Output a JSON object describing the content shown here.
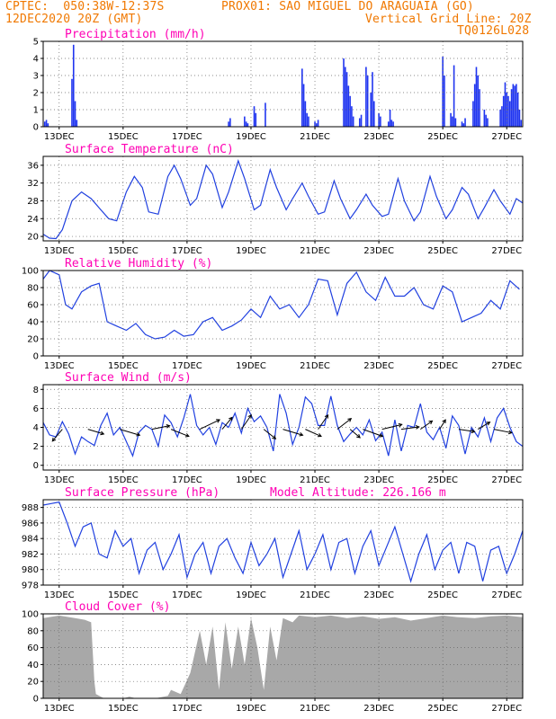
{
  "header": {
    "line1_left": "CPTEC:  050:38W-12:37S",
    "line1_right": "PROX01: SAO MIGUEL DO ARAGUAIA (GO)",
    "line2_left": "12DEC2020 20Z (GMT)",
    "line2_right": "Vertical Grid Line: 20Z",
    "line3_right": "TQ0126L028"
  },
  "colors": {
    "header": "#f07800",
    "title": "#ff00b4",
    "line": "#2040e0",
    "bar": "#2035f0",
    "cloud": "#a8a8a8"
  },
  "x_axis": {
    "start": "12DEC2020 20Z",
    "end": "27DEC2020 20Z",
    "tick_labels": [
      "13DEC",
      "15DEC",
      "17DEC",
      "19DEC",
      "21DEC",
      "23DEC",
      "25DEC",
      "27DEC"
    ]
  },
  "chart_data": [
    {
      "id": "precip",
      "type": "bar",
      "title": "Precipitation (mm/h)",
      "ylim": [
        0,
        5
      ],
      "yticks": [
        0,
        1,
        2,
        3,
        4,
        5
      ],
      "x": [
        0.05,
        0.1,
        0.15,
        0.9,
        0.95,
        1.0,
        1.05,
        5.8,
        5.85,
        6.3,
        6.35,
        6.4,
        6.6,
        6.65,
        6.95,
        8.1,
        8.15,
        8.2,
        8.25,
        8.3,
        8.5,
        8.55,
        8.6,
        9.4,
        9.45,
        9.5,
        9.55,
        9.6,
        9.65,
        9.7,
        9.9,
        9.95,
        10.1,
        10.15,
        10.25,
        10.3,
        10.35,
        10.5,
        10.55,
        10.8,
        10.85,
        10.9,
        10.95,
        12.5,
        12.55,
        12.75,
        12.8,
        12.85,
        12.9,
        13.1,
        13.15,
        13.2,
        13.45,
        13.5,
        13.55,
        13.6,
        13.65,
        13.8,
        13.85,
        13.9,
        14.3,
        14.35,
        14.4,
        14.45,
        14.5,
        14.55,
        14.6,
        14.65,
        14.7,
        14.75,
        14.8,
        14.85,
        14.9,
        14.95
      ],
      "values": [
        0.3,
        0.4,
        0.2,
        2.8,
        4.8,
        1.5,
        0.4,
        0.3,
        0.5,
        0.6,
        0.3,
        0.2,
        1.2,
        0.8,
        1.4,
        3.4,
        2.5,
        1.5,
        0.8,
        0.6,
        0.3,
        0.2,
        0.4,
        4.0,
        3.5,
        3.2,
        2.4,
        1.8,
        1.2,
        0.6,
        0.5,
        0.7,
        3.5,
        3.0,
        2.0,
        3.2,
        1.5,
        0.8,
        0.6,
        0.3,
        1.0,
        0.4,
        0.3,
        4.1,
        3.0,
        0.8,
        0.6,
        3.6,
        0.5,
        0.3,
        0.2,
        0.5,
        1.5,
        2.5,
        3.5,
        3.0,
        2.2,
        1.0,
        0.7,
        0.5,
        1.0,
        1.2,
        1.8,
        2.6,
        2.0,
        1.8,
        1.5,
        2.2,
        2.5,
        2.4,
        2.5,
        2.0,
        1.0,
        0.4
      ]
    },
    {
      "id": "temperature",
      "type": "line",
      "title": "Surface Temperature (nC)",
      "ylim": [
        19,
        38
      ],
      "yticks": [
        20,
        24,
        28,
        32,
        36
      ],
      "x": [
        0,
        0.2,
        0.4,
        0.6,
        0.9,
        1.2,
        1.5,
        1.8,
        2.05,
        2.3,
        2.6,
        2.85,
        3.1,
        3.3,
        3.6,
        3.9,
        4.1,
        4.3,
        4.6,
        4.8,
        5.1,
        5.3,
        5.6,
        5.8,
        6.1,
        6.3,
        6.6,
        6.8,
        7.1,
        7.3,
        7.6,
        7.8,
        8.1,
        8.3,
        8.6,
        8.8,
        9.1,
        9.3,
        9.6,
        9.8,
        10.1,
        10.3,
        10.6,
        10.8,
        11.1,
        11.3,
        11.6,
        11.8,
        12.1,
        12.3,
        12.6,
        12.8,
        13.1,
        13.3,
        13.6,
        13.8,
        14.1,
        14.3,
        14.6,
        14.8,
        15.0
      ],
      "values": [
        20.5,
        19.6,
        19.5,
        21.5,
        28.0,
        30.0,
        28.5,
        26.0,
        24.0,
        23.5,
        30.0,
        33.5,
        31.0,
        25.5,
        25.0,
        33.5,
        36.0,
        33.0,
        27.0,
        28.5,
        36.0,
        34.0,
        26.5,
        30.0,
        37.0,
        33.0,
        26.0,
        27.0,
        35.0,
        31.0,
        26.0,
        28.5,
        32.0,
        29.0,
        25.0,
        25.5,
        32.5,
        28.5,
        24.0,
        26.0,
        29.5,
        27.0,
        24.5,
        25.0,
        33.0,
        28.0,
        23.5,
        25.5,
        33.5,
        29.0,
        24.0,
        26.0,
        31.0,
        29.5,
        24.0,
        26.5,
        30.5,
        28.0,
        25.0,
        28.5,
        27.5
      ]
    },
    {
      "id": "humidity",
      "type": "line",
      "title": "Relative Humidity (%)",
      "ylim": [
        0,
        100
      ],
      "yticks": [
        0,
        20,
        40,
        60,
        80,
        100
      ],
      "x": [
        0,
        0.2,
        0.5,
        0.7,
        0.9,
        1.2,
        1.5,
        1.75,
        2.0,
        2.3,
        2.6,
        2.9,
        3.2,
        3.5,
        3.8,
        4.1,
        4.4,
        4.7,
        5.0,
        5.3,
        5.6,
        5.9,
        6.2,
        6.5,
        6.8,
        7.1,
        7.4,
        7.7,
        8.0,
        8.3,
        8.6,
        8.9,
        9.2,
        9.5,
        9.8,
        10.1,
        10.4,
        10.7,
        11.0,
        11.3,
        11.6,
        11.9,
        12.2,
        12.5,
        12.8,
        13.1,
        13.4,
        13.7,
        14.0,
        14.3,
        14.6,
        14.9
      ],
      "values": [
        90,
        100,
        95,
        60,
        55,
        75,
        82,
        85,
        40,
        35,
        30,
        38,
        25,
        20,
        22,
        30,
        23,
        25,
        40,
        45,
        30,
        35,
        42,
        55,
        45,
        70,
        55,
        60,
        45,
        60,
        90,
        88,
        48,
        85,
        98,
        75,
        65,
        92,
        70,
        70,
        80,
        60,
        55,
        82,
        75,
        40,
        45,
        50,
        65,
        55,
        88,
        78
      ]
    },
    {
      "id": "wind",
      "type": "line",
      "title": "Surface Wind (m/s)",
      "ylim": [
        -0.5,
        8.5
      ],
      "yticks": [
        0,
        2,
        4,
        6,
        8
      ],
      "x": [
        0,
        0.2,
        0.4,
        0.6,
        0.8,
        1.0,
        1.2,
        1.4,
        1.6,
        1.8,
        2.0,
        2.2,
        2.4,
        2.6,
        2.8,
        3.0,
        3.2,
        3.4,
        3.6,
        3.8,
        4.0,
        4.2,
        4.4,
        4.6,
        4.8,
        5.0,
        5.2,
        5.4,
        5.6,
        5.8,
        6.0,
        6.2,
        6.4,
        6.6,
        6.8,
        7.0,
        7.2,
        7.4,
        7.6,
        7.8,
        8.0,
        8.2,
        8.4,
        8.6,
        8.8,
        9.0,
        9.2,
        9.4,
        9.6,
        9.8,
        10.0,
        10.2,
        10.4,
        10.6,
        10.8,
        11.0,
        11.2,
        11.4,
        11.6,
        11.8,
        12.0,
        12.2,
        12.4,
        12.6,
        12.8,
        13.0,
        13.2,
        13.4,
        13.6,
        13.8,
        14.0,
        14.2,
        14.4,
        14.6,
        14.8,
        15.0
      ],
      "values": [
        4.5,
        3.2,
        3.0,
        4.6,
        3.3,
        1.2,
        3.0,
        2.5,
        2.1,
        4.2,
        5.5,
        3.2,
        4.0,
        2.5,
        1.0,
        3.5,
        4.2,
        3.8,
        2.0,
        5.3,
        4.5,
        3.0,
        5.0,
        7.5,
        4.2,
        3.2,
        4.0,
        2.2,
        4.5,
        4.0,
        5.5,
        3.4,
        6.0,
        4.6,
        5.2,
        4.0,
        1.5,
        7.5,
        5.5,
        2.2,
        4.0,
        7.2,
        6.5,
        4.2,
        4.2,
        7.3,
        4.2,
        2.5,
        3.3,
        4.0,
        3.2,
        4.8,
        2.6,
        3.5,
        1.0,
        4.8,
        1.5,
        4.2,
        4.0,
        6.5,
        3.5,
        2.7,
        4.0,
        1.8,
        5.2,
        4.2,
        1.2,
        4.0,
        3.0,
        5.0,
        2.5,
        5.0,
        6.0,
        4.0,
        2.5,
        2.0
      ]
    },
    {
      "id": "pressure",
      "type": "line",
      "title": "Surface Pressure (hPa)",
      "subtitle": "Model Altitude: 226.166 m",
      "ylim": [
        978,
        989
      ],
      "yticks": [
        978,
        980,
        982,
        984,
        986,
        988
      ],
      "x": [
        0,
        0.25,
        0.5,
        0.75,
        1.0,
        1.25,
        1.5,
        1.75,
        2.0,
        2.25,
        2.5,
        2.75,
        3.0,
        3.25,
        3.5,
        3.75,
        4.0,
        4.25,
        4.5,
        4.75,
        5.0,
        5.25,
        5.5,
        5.75,
        6.0,
        6.25,
        6.5,
        6.75,
        7.0,
        7.25,
        7.5,
        7.75,
        8.0,
        8.25,
        8.5,
        8.75,
        9.0,
        9.25,
        9.5,
        9.75,
        10.0,
        10.25,
        10.5,
        10.75,
        11.0,
        11.25,
        11.5,
        11.75,
        12.0,
        12.25,
        12.5,
        12.75,
        13.0,
        13.25,
        13.5,
        13.75,
        14.0,
        14.25,
        14.5,
        14.75,
        15.0
      ],
      "values": [
        988.3,
        988.5,
        988.7,
        986.0,
        983.0,
        985.5,
        986.0,
        982.0,
        981.5,
        985.0,
        983.0,
        984.0,
        979.5,
        982.5,
        983.5,
        980.0,
        982.0,
        984.5,
        979.0,
        982.0,
        983.5,
        979.5,
        983.0,
        984.0,
        981.5,
        979.5,
        983.5,
        980.5,
        982.0,
        984.0,
        979.0,
        982.0,
        985.0,
        980.0,
        982.0,
        984.5,
        980.0,
        983.5,
        984.0,
        979.5,
        983.0,
        985.0,
        980.5,
        983.0,
        985.5,
        982.0,
        978.5,
        982.0,
        984.5,
        980.0,
        982.5,
        983.5,
        979.5,
        983.5,
        983.0,
        978.5,
        982.5,
        983.0,
        979.5,
        982.0,
        985.0
      ]
    },
    {
      "id": "cloud",
      "type": "area",
      "title": "Cloud Cover (%)",
      "ylim": [
        0,
        100
      ],
      "yticks": [
        0,
        20,
        40,
        60,
        80,
        100
      ],
      "x": [
        0,
        0.5,
        1.0,
        1.3,
        1.5,
        1.6,
        1.65,
        1.9,
        2.5,
        2.7,
        2.9,
        3.5,
        3.9,
        4.0,
        4.3,
        4.6,
        4.9,
        5.1,
        5.3,
        5.5,
        5.7,
        5.9,
        6.1,
        6.3,
        6.5,
        6.7,
        6.9,
        7.1,
        7.3,
        7.5,
        7.8,
        8.0,
        8.5,
        9.0,
        9.5,
        10.0,
        10.5,
        11.0,
        11.5,
        12.0,
        12.5,
        13.0,
        13.5,
        14.0,
        14.5,
        15.0
      ],
      "values": [
        95,
        98,
        95,
        93,
        90,
        20,
        5,
        0,
        0,
        2,
        0,
        0,
        3,
        10,
        5,
        30,
        80,
        40,
        85,
        10,
        90,
        35,
        85,
        40,
        95,
        60,
        10,
        85,
        45,
        95,
        90,
        98,
        96,
        98,
        95,
        97,
        94,
        96,
        92,
        95,
        98,
        96,
        95,
        97,
        98,
        96
      ]
    }
  ]
}
